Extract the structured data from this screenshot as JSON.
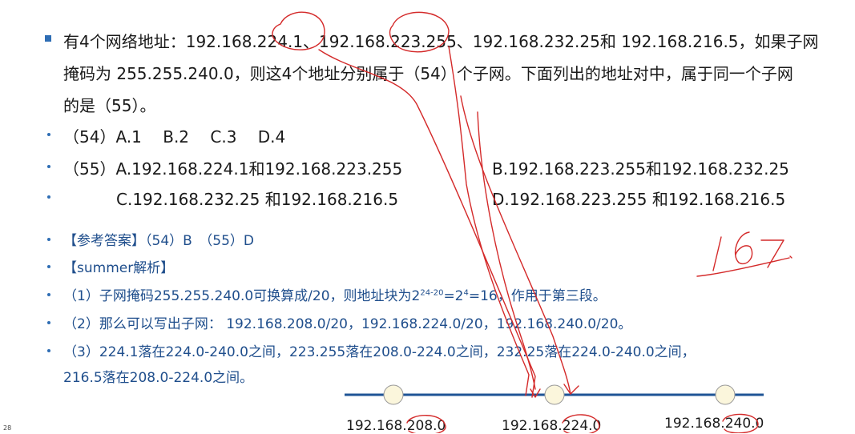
{
  "question": {
    "line1": "有4个网络地址：192.168.224.1、192.168.223.255、192.168.232.25和 192.168.216.5，如果子网",
    "line2": "掩码为 255.255.240.0，则这4个地址分别属于（54）个子网。下面列出的地址对中，属于同一个子网",
    "line3": "的是（55）。"
  },
  "options": {
    "q54": "（54）A.1　 B.2　 C.3　 D.4",
    "q55_a": "（55）A.192.168.224.1和192.168.223.255",
    "q55_b": "B.192.168.223.255和192.168.232.25",
    "q55_c": "C.192.168.232.25 和192.168.216.5",
    "q55_d": "D.192.168.223.255 和192.168.216.5"
  },
  "answer": {
    "ref": "【参考答案】（54）B　（55）D",
    "analysis_title": "【summer解析】",
    "step1_pre": "（1）子网掩码255.255.240.0可换算成/20，则地址块为2",
    "step1_sup1": "24-20",
    "step1_mid": "=2",
    "step1_sup2": "4",
    "step1_post": "=16，作用于第三段。",
    "step2": "（2）那么可以写出子网： 192.168.208.0/20，192.168.224.0/20，192.168.240.0/20。",
    "step3_line1": "（3）224.1落在224.0-240.0之间，223.255落在208.0-224.0之间，232.25落在224.0-240.0之间，",
    "step3_line2": "216.5落在208.0-224.0之间。"
  },
  "number_line": {
    "labels": [
      "192.168.208.0",
      "192.168.224.0",
      "192.168.240.0"
    ]
  },
  "handwriting": "16?.",
  "page_number": "28",
  "colors": {
    "bullet": "#2e6db4",
    "answer_text": "#1f4e8c",
    "axis": "#1f5496",
    "node_fill": "#fbf6dc",
    "ink": "#d42a2a"
  }
}
